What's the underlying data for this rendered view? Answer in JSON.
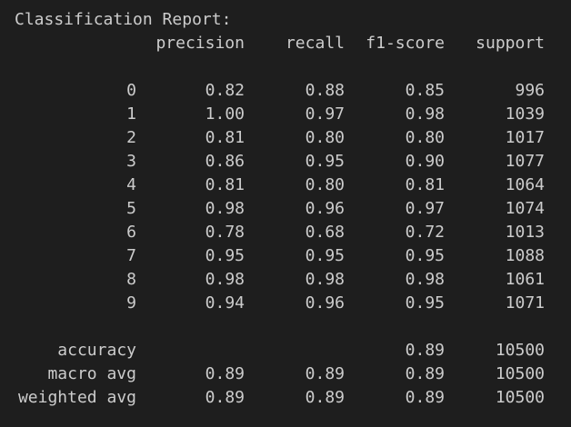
{
  "report": {
    "title": "Classification Report:",
    "headers": {
      "precision": "precision",
      "recall": "recall",
      "f1": "f1-score",
      "support": "support"
    },
    "rows": [
      {
        "label": "0",
        "precision": "0.82",
        "recall": "0.88",
        "f1": "0.85",
        "support": "996"
      },
      {
        "label": "1",
        "precision": "1.00",
        "recall": "0.97",
        "f1": "0.98",
        "support": "1039"
      },
      {
        "label": "2",
        "precision": "0.81",
        "recall": "0.80",
        "f1": "0.80",
        "support": "1017"
      },
      {
        "label": "3",
        "precision": "0.86",
        "recall": "0.95",
        "f1": "0.90",
        "support": "1077"
      },
      {
        "label": "4",
        "precision": "0.81",
        "recall": "0.80",
        "f1": "0.81",
        "support": "1064"
      },
      {
        "label": "5",
        "precision": "0.98",
        "recall": "0.96",
        "f1": "0.97",
        "support": "1074"
      },
      {
        "label": "6",
        "precision": "0.78",
        "recall": "0.68",
        "f1": "0.72",
        "support": "1013"
      },
      {
        "label": "7",
        "precision": "0.95",
        "recall": "0.95",
        "f1": "0.95",
        "support": "1088"
      },
      {
        "label": "8",
        "precision": "0.98",
        "recall": "0.98",
        "f1": "0.98",
        "support": "1061"
      },
      {
        "label": "9",
        "precision": "0.94",
        "recall": "0.96",
        "f1": "0.95",
        "support": "1071"
      }
    ],
    "summary": [
      {
        "label": "accuracy",
        "precision": "",
        "recall": "",
        "f1": "0.89",
        "support": "10500"
      },
      {
        "label": "macro avg",
        "precision": "0.89",
        "recall": "0.89",
        "f1": "0.89",
        "support": "10500"
      },
      {
        "label": "weighted avg",
        "precision": "0.89",
        "recall": "0.89",
        "f1": "0.89",
        "support": "10500"
      }
    ]
  },
  "colors": {
    "background": "#1e1e1e",
    "text": "#cccccc"
  }
}
